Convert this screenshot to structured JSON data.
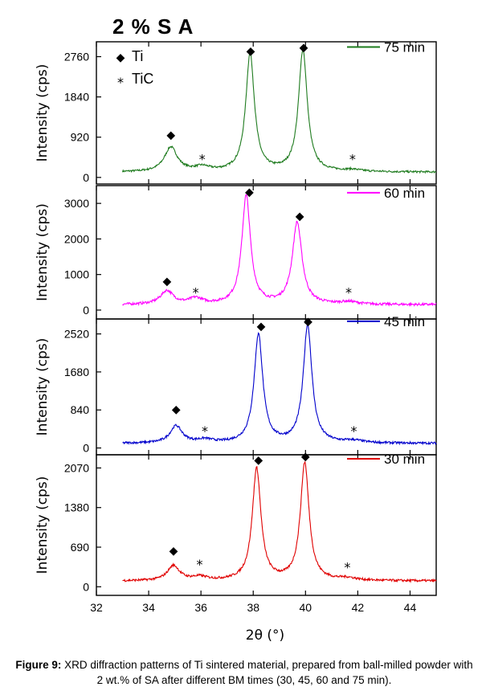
{
  "header": {
    "title": "2 % S A"
  },
  "caption": {
    "label": "Figure 9:",
    "text": "XRD diffraction patterns of Ti sintered material, prepared from ball-milled powder with 2 wt.% of SA after different BM times (30, 45, 60 and 75 min)."
  },
  "chart_data": {
    "type": "line",
    "xlabel": "2θ (°)",
    "ylabel": "Intensity (cps)",
    "xlim": [
      32,
      45
    ],
    "xticks": [
      32,
      34,
      36,
      38,
      40,
      42,
      44
    ],
    "x_data_start": 33,
    "legend": {
      "markers": [
        {
          "symbol": "◆",
          "label": "Ti"
        },
        {
          "symbol": "*",
          "label": "TiC"
        }
      ]
    },
    "panels": [
      {
        "series_name": "75 min",
        "color": "#1e7b1e",
        "ylim": [
          -150,
          3100
        ],
        "yticks": [
          0,
          920,
          1840,
          2760
        ],
        "baseline": 120,
        "noise": 22,
        "peaks": [
          {
            "x": 34.85,
            "h": 560,
            "w": 0.3
          },
          {
            "x": 36.05,
            "h": 100,
            "w": 0.35
          },
          {
            "x": 37.88,
            "h": 2700,
            "w": 0.2
          },
          {
            "x": 39.9,
            "h": 2780,
            "w": 0.2
          },
          {
            "x": 41.8,
            "h": 40,
            "w": 0.4
          }
        ],
        "markers": [
          {
            "x": 34.85,
            "y": 1000,
            "symbol": "◆"
          },
          {
            "x": 36.05,
            "y": 500,
            "symbol": "*"
          },
          {
            "x": 37.9,
            "y": 2920,
            "symbol": "◆"
          },
          {
            "x": 39.93,
            "y": 3000,
            "symbol": "◆"
          },
          {
            "x": 41.8,
            "y": 500,
            "symbol": "*"
          }
        ],
        "legend_y": 2980
      },
      {
        "series_name": "60 min",
        "color": "#ff00ff",
        "ylim": [
          -250,
          3500
        ],
        "yticks": [
          0,
          1000,
          2000,
          3000
        ],
        "baseline": 150,
        "noise": 35,
        "peaks": [
          {
            "x": 34.7,
            "h": 380,
            "w": 0.3
          },
          {
            "x": 35.8,
            "h": 160,
            "w": 0.3
          },
          {
            "x": 37.73,
            "h": 3050,
            "w": 0.2
          },
          {
            "x": 39.68,
            "h": 2300,
            "w": 0.22
          },
          {
            "x": 41.65,
            "h": 70,
            "w": 0.4
          }
        ],
        "markers": [
          {
            "x": 34.7,
            "y": 850,
            "symbol": "◆"
          },
          {
            "x": 35.8,
            "y": 600,
            "symbol": "*"
          },
          {
            "x": 37.85,
            "y": 3350,
            "symbol": "◆"
          },
          {
            "x": 39.78,
            "y": 2670,
            "symbol": "◆"
          },
          {
            "x": 41.65,
            "y": 600,
            "symbol": "*"
          }
        ],
        "legend_y": 3300
      },
      {
        "series_name": "45 min",
        "color": "#0000cc",
        "ylim": [
          -150,
          2850
        ],
        "yticks": [
          0,
          840,
          1680,
          2520
        ],
        "baseline": 100,
        "noise": 25,
        "peaks": [
          {
            "x": 35.05,
            "h": 380,
            "w": 0.28
          },
          {
            "x": 36.15,
            "h": 70,
            "w": 0.35
          },
          {
            "x": 38.2,
            "h": 2400,
            "w": 0.2
          },
          {
            "x": 40.08,
            "h": 2600,
            "w": 0.2
          },
          {
            "x": 41.85,
            "h": 50,
            "w": 0.4
          }
        ],
        "markers": [
          {
            "x": 35.05,
            "y": 880,
            "symbol": "◆"
          },
          {
            "x": 36.15,
            "y": 450,
            "symbol": "*"
          },
          {
            "x": 38.3,
            "y": 2720,
            "symbol": "◆"
          },
          {
            "x": 40.1,
            "y": 2820,
            "symbol": "◆"
          },
          {
            "x": 41.85,
            "y": 450,
            "symbol": "*"
          }
        ],
        "legend_y": 2800
      },
      {
        "series_name": "30 min",
        "color": "#e00000",
        "ylim": [
          -150,
          2300
        ],
        "yticks": [
          0,
          690,
          1380,
          2070
        ],
        "baseline": 100,
        "noise": 20,
        "peaks": [
          {
            "x": 34.95,
            "h": 260,
            "w": 0.28
          },
          {
            "x": 35.95,
            "h": 60,
            "w": 0.35
          },
          {
            "x": 38.13,
            "h": 1950,
            "w": 0.2
          },
          {
            "x": 39.97,
            "h": 2050,
            "w": 0.2
          },
          {
            "x": 41.6,
            "h": 40,
            "w": 0.4
          }
        ],
        "markers": [
          {
            "x": 34.95,
            "y": 650,
            "symbol": "◆"
          },
          {
            "x": 35.95,
            "y": 450,
            "symbol": "*"
          },
          {
            "x": 38.2,
            "y": 2230,
            "symbol": "◆"
          },
          {
            "x": 40.0,
            "y": 2290,
            "symbol": "◆"
          },
          {
            "x": 41.6,
            "y": 400,
            "symbol": "*"
          }
        ],
        "legend_y": 2230
      }
    ]
  }
}
